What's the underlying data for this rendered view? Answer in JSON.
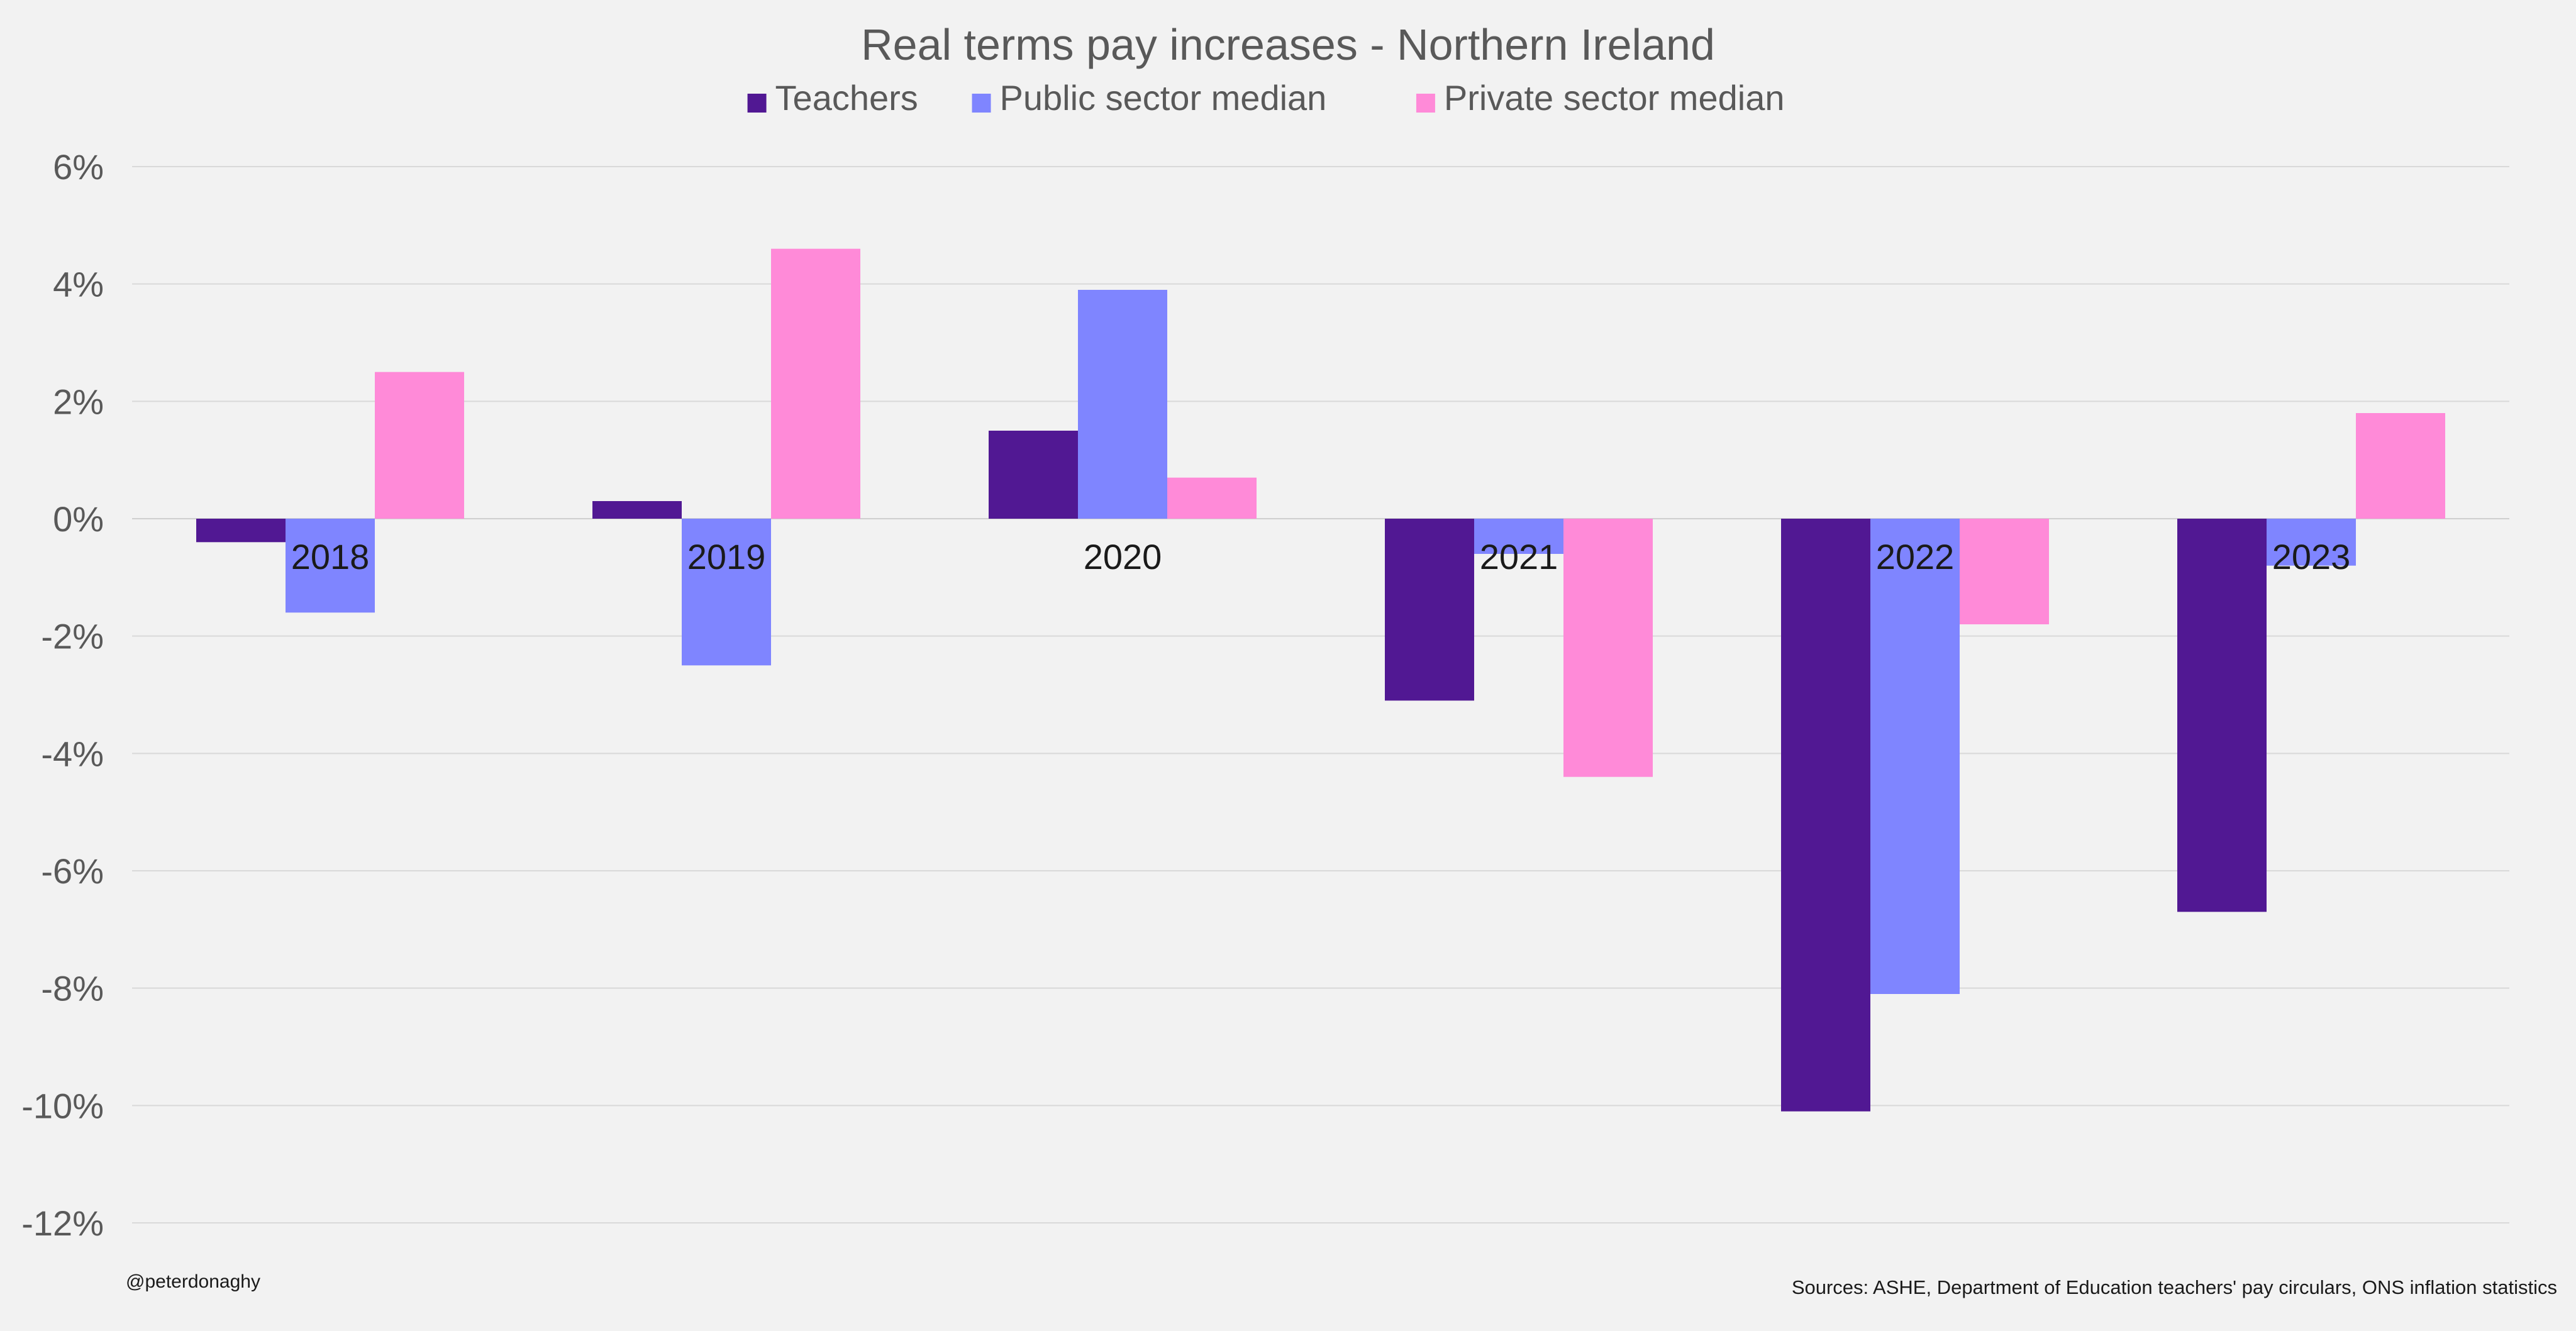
{
  "chart_data": {
    "type": "bar",
    "title": "Real terms pay increases - Northern Ireland",
    "categories": [
      "2018",
      "2019",
      "2020",
      "2021",
      "2022",
      "2023"
    ],
    "series": [
      {
        "name": "Teachers",
        "color": "#511893",
        "values": [
          -0.4,
          0.3,
          1.5,
          -3.1,
          -10.1,
          -6.7
        ]
      },
      {
        "name": "Public sector median",
        "color": "#7f85ff",
        "values": [
          -1.6,
          -2.5,
          3.9,
          -0.6,
          -8.1,
          -0.8
        ]
      },
      {
        "name": "Private sector median",
        "color": "#ff8ad8",
        "values": [
          2.5,
          4.6,
          0.7,
          -4.4,
          -1.8,
          1.8
        ]
      }
    ],
    "ylim": [
      -12,
      6
    ],
    "ytick_step": 2,
    "ytick_labels": [
      "6%",
      "4%",
      "2%",
      "0%",
      "-2%",
      "-4%",
      "-6%",
      "-8%",
      "-10%",
      "-12%"
    ],
    "grid": true,
    "legend_position": "top-center",
    "xlabel": "",
    "ylabel": ""
  },
  "footer": {
    "credit": "@peterdonaghy",
    "sources": "Sources: ASHE, Department of Education teachers' pay circulars, ONS inflation statistics"
  }
}
